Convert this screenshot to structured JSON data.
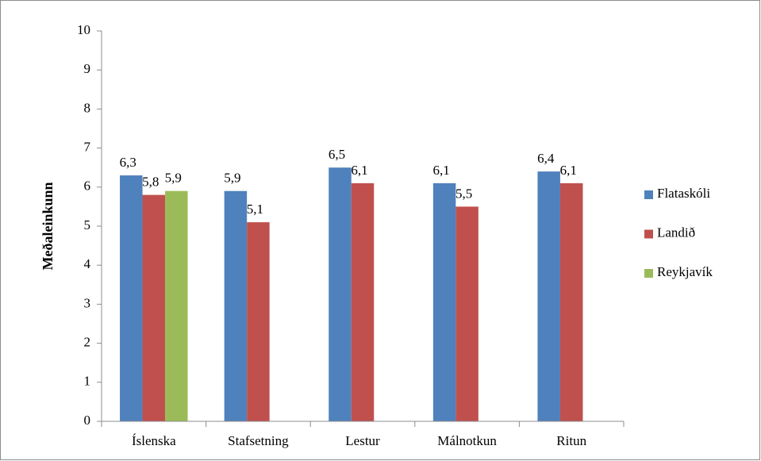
{
  "chart_data": {
    "type": "bar",
    "y_axis_label": "Meðaleinkunn",
    "categories": [
      "Íslenska",
      "Stafsetning",
      "Lestur",
      "Málnotkun",
      "Ritun"
    ],
    "series": [
      {
        "name": "Flataskóli",
        "color": "#4f81bd",
        "values": [
          6.3,
          5.9,
          6.5,
          6.1,
          6.4
        ],
        "value_labels": [
          "6,3",
          "5,9",
          "6,5",
          "6,1",
          "6,4"
        ]
      },
      {
        "name": "Landið",
        "color": "#c0504d",
        "values": [
          5.8,
          5.1,
          6.1,
          5.5,
          6.1
        ],
        "value_labels": [
          "5,8",
          "5,1",
          "6,1",
          "5,5",
          "6,1"
        ]
      },
      {
        "name": "Reykjavík",
        "color": "#9bbb59",
        "values": [
          5.9,
          null,
          null,
          null,
          null
        ],
        "value_labels": [
          "5,9",
          null,
          null,
          null,
          null
        ]
      }
    ],
    "ylim": [
      0,
      10
    ],
    "yticks": [
      0,
      1,
      2,
      3,
      4,
      5,
      6,
      7,
      8,
      9,
      10
    ],
    "grid": false,
    "legend": "right"
  }
}
